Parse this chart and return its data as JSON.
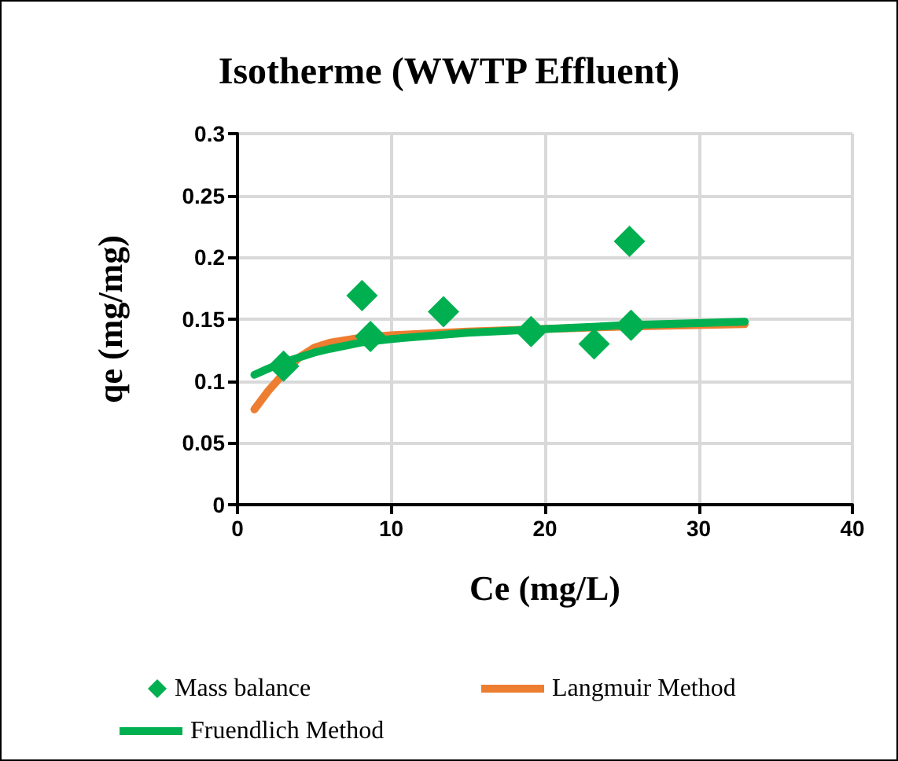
{
  "chart_data": {
    "type": "scatter",
    "title": "Isotherme (WWTP Effluent)",
    "xlabel": "Ce (mg/L)",
    "ylabel": "qe (mg/mg)",
    "xlim": [
      0,
      40
    ],
    "xticks": [
      0,
      10,
      20,
      30,
      40
    ],
    "ylim": [
      0,
      0.3
    ],
    "yticks": [
      0,
      0.05,
      0.1,
      0.15,
      0.2,
      0.25,
      0.3
    ],
    "grid": true,
    "legend": "bottom",
    "series": [
      {
        "name": "Mass balance",
        "marker": "diamond",
        "color": "#00b050",
        "x": [
          3.0,
          8.1,
          8.65,
          13.4,
          19.1,
          23.2,
          25.5,
          25.6
        ],
        "values": [
          0.112,
          0.169,
          0.136,
          0.156,
          0.14,
          0.13,
          0.213,
          0.145
        ]
      },
      {
        "name": "Langmuir Method",
        "type": "line",
        "marker": "none",
        "line_style": "solid",
        "color": "#ed7d31",
        "x": [
          1.1,
          2,
          3,
          4,
          5,
          6,
          8,
          10,
          15,
          20,
          25,
          33
        ],
        "values": [
          0.077,
          0.092,
          0.106,
          0.119,
          0.127,
          0.131,
          0.135,
          0.137,
          0.14,
          0.142,
          0.144,
          0.146
        ]
      },
      {
        "name": "Fruendlich Method",
        "type": "line",
        "marker": "none",
        "line_style": "solid",
        "color": "#00b050",
        "x": [
          1.1,
          2,
          3,
          4,
          5,
          6,
          8,
          10,
          15,
          20,
          25,
          33
        ],
        "values": [
          0.105,
          0.11,
          0.115,
          0.119,
          0.123,
          0.126,
          0.131,
          0.134,
          0.139,
          0.142,
          0.145,
          0.148
        ]
      }
    ]
  }
}
